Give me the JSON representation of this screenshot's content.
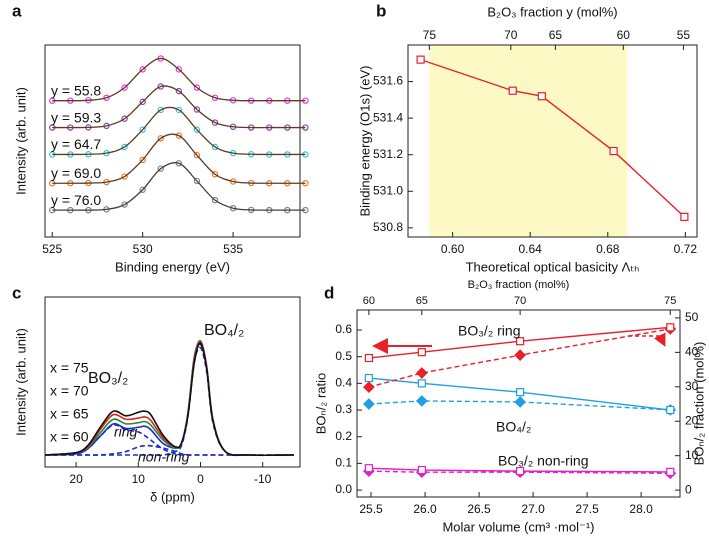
{
  "chart_data": [
    {
      "type": "line",
      "label": "a",
      "xlabel": "Binding energy (eV)",
      "ylabel": "Intensity (arb. unit)",
      "x": [
        525,
        526,
        527,
        528,
        529,
        530,
        531,
        532,
        533,
        534,
        535,
        536,
        537,
        538,
        539
      ],
      "xlim": [
        524.6,
        538.7
      ],
      "ylim": [
        0,
        1
      ],
      "xticks": [
        525,
        530,
        535
      ],
      "series": [
        {
          "name": "y = 55.8",
          "color": "#e838d8",
          "marker": "circle",
          "open": true,
          "smooth": true,
          "fit_color": "#5b3b22",
          "values": [
            0.71,
            0.71,
            0.712,
            0.725,
            0.778,
            0.873,
            0.93,
            0.873,
            0.778,
            0.725,
            0.712,
            0.71,
            0.71,
            0.71,
            0.71
          ]
        },
        {
          "name": "y = 59.3",
          "color": "#8a40a8",
          "marker": "circle",
          "open": true,
          "smooth": true,
          "fit_color": "#5b3b22",
          "values": [
            0.57,
            0.57,
            0.571,
            0.579,
            0.616,
            0.704,
            0.784,
            0.76,
            0.664,
            0.596,
            0.574,
            0.57,
            0.57,
            0.57,
            0.57
          ]
        },
        {
          "name": "y = 64.7",
          "color": "#30c4d4",
          "marker": "circle",
          "open": true,
          "smooth": true,
          "fit_color": "#5b3b22",
          "values": [
            0.43,
            0.43,
            0.431,
            0.437,
            0.469,
            0.559,
            0.662,
            0.662,
            0.559,
            0.469,
            0.437,
            0.431,
            0.43,
            0.43,
            0.43
          ]
        },
        {
          "name": "y = 69.0",
          "color": "#e87820",
          "marker": "circle",
          "open": true,
          "smooth": true,
          "fit_color": "#5b3b22",
          "values": [
            0.28,
            0.28,
            0.281,
            0.286,
            0.315,
            0.402,
            0.514,
            0.528,
            0.426,
            0.327,
            0.289,
            0.281,
            0.28,
            0.28,
            0.28
          ]
        },
        {
          "name": "y = 76.0",
          "color": "#808080",
          "marker": "circle",
          "open": true,
          "smooth": true,
          "fit_color": "#404040",
          "values": [
            0.14,
            0.14,
            0.14,
            0.144,
            0.169,
            0.246,
            0.356,
            0.384,
            0.292,
            0.192,
            0.15,
            0.141,
            0.14,
            0.14,
            0.14
          ]
        }
      ]
    },
    {
      "type": "line",
      "label": "b",
      "xlabel": "Theoretical optical basicity Λₜₕ",
      "ylabel": "Binding energy (O1s) (eV)",
      "x2label": "B₂O₃ fraction y (mol%)",
      "x": [
        0.5835,
        0.631,
        0.646,
        0.683,
        0.7195
      ],
      "xlim": [
        0.577,
        0.726
      ],
      "ylim": [
        530.75,
        531.8
      ],
      "xticks": [
        {
          "value": 0.6,
          "label": "0.60"
        },
        0.64,
        0.68,
        0.72
      ],
      "yticks": [
        530.8,
        {
          "value": 531,
          "label": "531.0"
        },
        531.2,
        531.4,
        531.6
      ],
      "x2ticks": [
        {
          "value": 75,
          "x": 0.588
        },
        {
          "value": 70,
          "x": 0.63
        },
        {
          "value": 65,
          "x": 0.653
        },
        {
          "value": 60,
          "x": 0.688
        },
        {
          "value": 55,
          "x": 0.719
        }
      ],
      "highlight_x": [
        0.588,
        0.69
      ],
      "highlight_color": "#fdf9c4",
      "series": [
        {
          "color": "#e8202a",
          "marker": "square",
          "open": true,
          "values": [
            531.72,
            531.55,
            531.52,
            531.22,
            530.86
          ]
        }
      ]
    },
    {
      "type": "line",
      "label": "c",
      "xlabel": "δ (ppm)",
      "ylabel": "Intensity (arb. unit)",
      "x": [
        25,
        20,
        18,
        16,
        14,
        12,
        10,
        9,
        8,
        6,
        4,
        3,
        2,
        1,
        0,
        -1,
        -2,
        -4,
        -8,
        -15
      ],
      "xlim": [
        25,
        -16
      ],
      "ylim": [
        -0.104,
        1.37
      ],
      "xticks": [
        20,
        10,
        0,
        -10
      ],
      "annotations": [
        "BO₃/₂",
        "BO₄/₂"
      ],
      "series": [
        {
          "name": "x = 75",
          "color": "#111111",
          "smooth": true,
          "values": [
            0,
            0.02,
            0.09,
            0.25,
            0.38,
            0.34,
            0.37,
            0.38,
            0.35,
            0.17,
            0.07,
            0.11,
            0.35,
            0.8,
            0.97,
            0.75,
            0.3,
            0.03,
            0,
            0
          ]
        },
        {
          "name": "x = 70",
          "color": "#e82020",
          "smooth": true,
          "values": [
            0,
            0.02,
            0.08,
            0.23,
            0.35,
            0.31,
            0.32,
            0.33,
            0.3,
            0.15,
            0.07,
            0.11,
            0.36,
            0.82,
            0.98,
            0.76,
            0.3,
            0.03,
            0,
            0
          ]
        },
        {
          "name": "x = 65",
          "color": "#20902a",
          "smooth": true,
          "values": [
            0,
            0.02,
            0.07,
            0.2,
            0.31,
            0.27,
            0.28,
            0.29,
            0.26,
            0.13,
            0.06,
            0.11,
            0.37,
            0.84,
            0.99,
            0.77,
            0.31,
            0.03,
            0,
            0
          ]
        },
        {
          "name": "x = 60",
          "color": "#1a2ad0",
          "smooth": true,
          "values": [
            0,
            0.01,
            0.06,
            0.17,
            0.27,
            0.23,
            0.24,
            0.25,
            0.22,
            0.1,
            0.06,
            0.11,
            0.37,
            0.85,
            0.96,
            0.75,
            0.3,
            0.03,
            0,
            0
          ]
        },
        {
          "name": "ring",
          "color": "#1a2ad0",
          "dash": true,
          "smooth": true,
          "values": [
            0,
            0.01,
            0.06,
            0.17,
            0.26,
            0.22,
            0.2,
            0.17,
            0.13,
            0.05,
            0.01,
            0,
            0,
            0,
            0,
            0,
            0,
            0,
            0,
            0
          ]
        },
        {
          "name": "non-ring",
          "color": "#1a2ad0",
          "dash": true,
          "smooth": true,
          "values": [
            0,
            0,
            0,
            0,
            0.01,
            0.03,
            0.07,
            0.08,
            0.08,
            0.06,
            0.03,
            0.01,
            0,
            0,
            0,
            0,
            0,
            0,
            0,
            0
          ]
        },
        {
          "color": "#1a2ad0",
          "dash": true,
          "smooth": true,
          "values": [
            0,
            0,
            0,
            0,
            0,
            0,
            0,
            0,
            0,
            0,
            0.03,
            0.09,
            0.34,
            0.8,
            0.93,
            0.72,
            0.28,
            0.03,
            0,
            0
          ]
        }
      ]
    },
    {
      "type": "line",
      "label": "d",
      "xlabel": "Molar volume (cm³ ·mol⁻¹)",
      "ylabel": "BOₙ/₂ ratio",
      "y2label": "BOₙ/₂ fraction (mol%)",
      "x2label": "B₂O₃ fraction (mol%)",
      "x": [
        25.48,
        25.97,
        26.88,
        28.27
      ],
      "xlim": [
        25.37,
        28.36
      ],
      "ylim": [
        -0.026,
        0.675
      ],
      "y2lim": [
        -2.0,
        52.3
      ],
      "xticks": [
        25.5,
        {
          "value": 26,
          "label": "26.0"
        },
        26.5,
        {
          "value": 27,
          "label": "27.0"
        },
        27.5,
        {
          "value": 28,
          "label": "28.0"
        }
      ],
      "yticks": [
        {
          "value": 0,
          "label": "0.0"
        },
        0.1,
        0.2,
        0.3,
        0.4,
        0.5,
        0.6
      ],
      "y2ticks": [
        0,
        10,
        20,
        30,
        40,
        50
      ],
      "x2ticks": [
        {
          "value": 60,
          "x": 25.48
        },
        {
          "value": 65,
          "x": 25.97
        },
        {
          "value": 70,
          "x": 26.88
        },
        {
          "value": 75,
          "x": 28.27
        }
      ],
      "annotations": [
        "BO₃/₂ ring",
        "BO₄/₂",
        "BO₃/₂ non-ring"
      ],
      "series": [
        {
          "color": "#e8202a",
          "marker": "square",
          "open": true,
          "values": [
            0.495,
            0.517,
            0.558,
            0.61
          ]
        },
        {
          "color": "#e8202a",
          "marker": "diamond",
          "dash": true,
          "axis": "y2",
          "values": [
            29.9,
            34.0,
            39.2,
            46.8
          ]
        },
        {
          "color": "#20a0e0",
          "marker": "square",
          "open": true,
          "values": [
            0.42,
            0.4,
            0.367,
            0.3
          ]
        },
        {
          "color": "#20a0e0",
          "marker": "diamond",
          "dash": true,
          "axis": "y2",
          "values": [
            25.0,
            25.9,
            25.6,
            23.3
          ]
        },
        {
          "color": "#e020c8",
          "marker": "square",
          "open": true,
          "values": [
            0.082,
            0.075,
            0.071,
            0.068
          ]
        },
        {
          "color": "#e020c8",
          "marker": "diamond",
          "dash": true,
          "axis": "y2",
          "values": [
            5.5,
            5.2,
            5.2,
            4.9
          ]
        }
      ]
    }
  ]
}
